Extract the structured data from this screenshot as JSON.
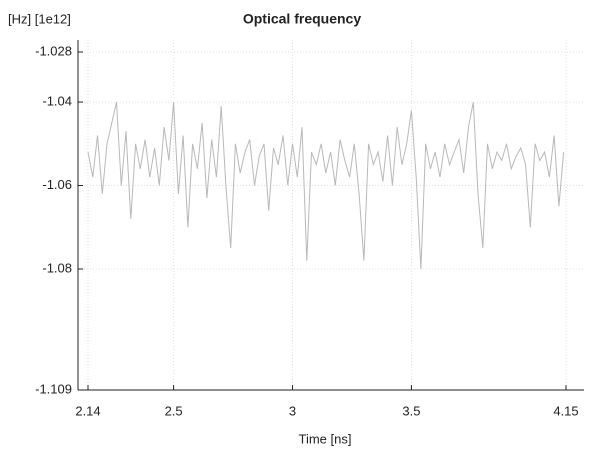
{
  "chart_data": {
    "type": "line",
    "title": "Optical frequency",
    "y_unit_label": "[Hz] [1e12]",
    "x_label": "Time [ns]",
    "x": [
      2.14,
      2.16,
      2.18,
      2.2,
      2.22,
      2.24,
      2.26,
      2.28,
      2.3,
      2.32,
      2.34,
      2.36,
      2.38,
      2.4,
      2.42,
      2.44,
      2.46,
      2.48,
      2.5,
      2.52,
      2.54,
      2.56,
      2.58,
      2.6,
      2.62,
      2.64,
      2.66,
      2.68,
      2.7,
      2.72,
      2.74,
      2.76,
      2.78,
      2.8,
      2.82,
      2.84,
      2.86,
      2.88,
      2.9,
      2.92,
      2.94,
      2.96,
      2.98,
      3,
      3.02,
      3.04,
      3.06,
      3.08,
      3.1,
      3.12,
      3.14,
      3.16,
      3.18,
      3.2,
      3.22,
      3.24,
      3.26,
      3.28,
      3.3,
      3.32,
      3.34,
      3.36,
      3.38,
      3.4,
      3.42,
      3.44,
      3.46,
      3.48,
      3.5,
      3.52,
      3.54,
      3.56,
      3.58,
      3.6,
      3.62,
      3.64,
      3.66,
      3.68,
      3.7,
      3.72,
      3.74,
      3.76,
      3.78,
      3.8,
      3.82,
      3.84,
      3.86,
      3.88,
      3.9,
      3.92,
      3.94,
      3.96,
      3.98,
      4,
      4.02,
      4.04,
      4.06,
      4.08,
      4.1,
      4.12,
      4.14
    ],
    "values": [
      -1.052,
      -1.058,
      -1.048,
      -1.062,
      -1.05,
      -1.045,
      -1.04,
      -1.06,
      -1.047,
      -1.068,
      -1.05,
      -1.056,
      -1.049,
      -1.058,
      -1.051,
      -1.06,
      -1.046,
      -1.054,
      -1.04,
      -1.062,
      -1.048,
      -1.07,
      -1.05,
      -1.056,
      -1.045,
      -1.063,
      -1.049,
      -1.058,
      -1.041,
      -1.06,
      -1.075,
      -1.05,
      -1.057,
      -1.052,
      -1.049,
      -1.06,
      -1.053,
      -1.05,
      -1.066,
      -1.051,
      -1.055,
      -1.048,
      -1.06,
      -1.05,
      -1.058,
      -1.046,
      -1.078,
      -1.052,
      -1.055,
      -1.05,
      -1.057,
      -1.052,
      -1.06,
      -1.049,
      -1.054,
      -1.058,
      -1.05,
      -1.062,
      -1.078,
      -1.05,
      -1.055,
      -1.052,
      -1.059,
      -1.048,
      -1.06,
      -1.046,
      -1.055,
      -1.05,
      -1.042,
      -1.058,
      -1.08,
      -1.05,
      -1.056,
      -1.052,
      -1.058,
      -1.05,
      -1.055,
      -1.052,
      -1.049,
      -1.057,
      -1.046,
      -1.04,
      -1.062,
      -1.075,
      -1.05,
      -1.056,
      -1.052,
      -1.054,
      -1.05,
      -1.056,
      -1.053,
      -1.051,
      -1.055,
      -1.07,
      -1.05,
      -1.054,
      -1.052,
      -1.058,
      -1.048,
      -1.065,
      -1.052
    ],
    "color": "#b8b8b8",
    "xlim": [
      2.14,
      4.15
    ],
    "xticks": [
      2.14,
      2.5,
      3,
      3.5,
      4.15
    ],
    "ylim": [
      -1.109,
      -1.028
    ],
    "yticks": [
      -1.028,
      -1.04,
      -1.06,
      -1.08,
      -1.109
    ],
    "grid": true
  }
}
